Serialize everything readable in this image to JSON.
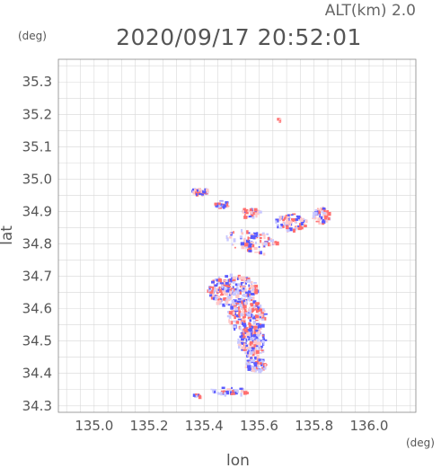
{
  "header": {
    "altitude_label": "ALT(km) 2.0",
    "datetime": "2020/09/17 20:52:01"
  },
  "colors": {
    "positive": "#ff6f6f",
    "negative": "#5a5aff",
    "faint_positive": "#ffc8c8",
    "faint_negative": "#c8c8ff",
    "grid": "#d8d8d8",
    "axis": "#888888"
  },
  "chart_data": {
    "type": "scatter",
    "title": "2020/09/17 20:52:01",
    "xlabel": "lon",
    "ylabel": "lat",
    "x_unit": "(deg)",
    "y_unit": "(deg)",
    "xlim": [
      134.87,
      136.17
    ],
    "ylim": [
      34.28,
      35.37
    ],
    "x_ticks": [
      "135.0",
      "135.2",
      "135.4",
      "135.6",
      "135.8",
      "136.0"
    ],
    "y_ticks": [
      "34.3",
      "34.4",
      "34.5",
      "34.6",
      "34.7",
      "34.8",
      "34.9",
      "35.0",
      "35.1",
      "35.2",
      "35.3"
    ],
    "grid": true,
    "clusters": [
      {
        "lon": 135.38,
        "lat": 34.965,
        "rlon": 0.03,
        "rlat": 0.012,
        "n": 40
      },
      {
        "lon": 135.46,
        "lat": 34.925,
        "rlon": 0.03,
        "rlat": 0.01,
        "n": 30
      },
      {
        "lon": 135.56,
        "lat": 34.9,
        "rlon": 0.04,
        "rlat": 0.015,
        "n": 35
      },
      {
        "lon": 135.71,
        "lat": 34.87,
        "rlon": 0.06,
        "rlat": 0.025,
        "n": 70
      },
      {
        "lon": 135.82,
        "lat": 34.89,
        "rlon": 0.03,
        "rlat": 0.03,
        "n": 45
      },
      {
        "lon": 135.6,
        "lat": 34.805,
        "rlon": 0.06,
        "rlat": 0.035,
        "n": 60
      },
      {
        "lon": 135.52,
        "lat": 34.82,
        "rlon": 0.05,
        "rlat": 0.03,
        "n": 25
      },
      {
        "lon": 135.5,
        "lat": 34.66,
        "rlon": 0.09,
        "rlat": 0.05,
        "n": 260
      },
      {
        "lon": 135.55,
        "lat": 34.58,
        "rlon": 0.07,
        "rlat": 0.05,
        "n": 170
      },
      {
        "lon": 135.57,
        "lat": 34.5,
        "rlon": 0.05,
        "rlat": 0.05,
        "n": 150
      },
      {
        "lon": 135.58,
        "lat": 34.43,
        "rlon": 0.04,
        "rlat": 0.025,
        "n": 60
      },
      {
        "lon": 135.5,
        "lat": 34.35,
        "rlon": 0.08,
        "rlat": 0.012,
        "n": 40
      },
      {
        "lon": 135.37,
        "lat": 34.335,
        "rlon": 0.02,
        "rlat": 0.005,
        "n": 10
      },
      {
        "lon": 135.67,
        "lat": 35.185,
        "rlon": 0.006,
        "rlat": 0.008,
        "n": 4
      }
    ]
  }
}
